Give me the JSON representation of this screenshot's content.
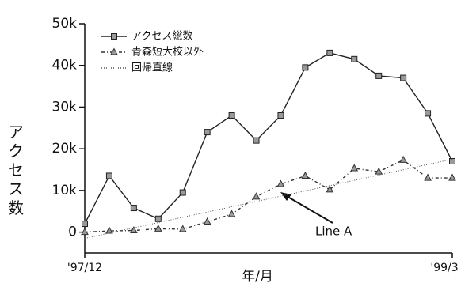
{
  "chart_data": {
    "type": "line",
    "x_label": "年/月",
    "y_label": "アクセス数",
    "annotation": "Line A",
    "categories": [
      "'97/12",
      null,
      null,
      null,
      null,
      null,
      null,
      null,
      null,
      null,
      null,
      null,
      null,
      null,
      null,
      "'99/3"
    ],
    "series": [
      {
        "name": "アクセス総数",
        "color": "#222222",
        "marker": "square",
        "dash": "solid",
        "values": [
          2000,
          13500,
          5800,
          3200,
          9500,
          24000,
          28000,
          22000,
          28000,
          39500,
          43000,
          41500,
          37500,
          37000,
          28500,
          17000
        ]
      },
      {
        "name": "青森短大校以外",
        "color": "#333333",
        "marker": "triangle",
        "dash": "dashdot",
        "values": [
          0,
          300,
          400,
          800,
          700,
          2500,
          4300,
          8500,
          11500,
          13500,
          10200,
          15300,
          14500,
          17300,
          13000,
          13000
        ]
      },
      {
        "name": "回帰直線",
        "color": "#555555",
        "marker": "none",
        "dash": "dotted",
        "values": [
          -1500,
          -230,
          1030,
          2300,
          3570,
          4830,
          6100,
          7370,
          8630,
          9900,
          11170,
          12430,
          13700,
          14970,
          16230,
          17500
        ]
      }
    ],
    "ylim": [
      -5000,
      50000
    ],
    "yticks": [
      0,
      {
        "value": 10000,
        "label": "10k"
      },
      {
        "value": 20000,
        "label": "20k"
      },
      {
        "value": 30000,
        "label": "30k"
      },
      {
        "value": 40000,
        "label": "40k"
      },
      {
        "value": 50000,
        "label": "50k"
      }
    ]
  }
}
